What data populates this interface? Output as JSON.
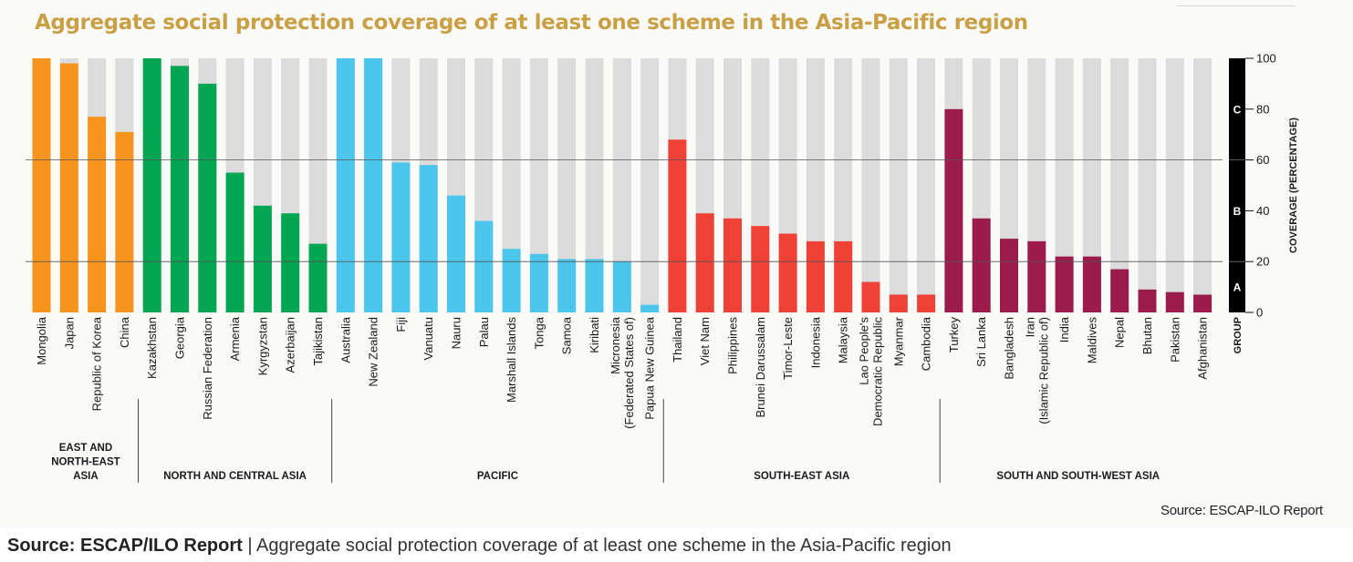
{
  "page": {
    "title": "Aggregate social protection coverage of at least one scheme in the Asia-Pacific region",
    "source_note": "Source: ESCAP-ILO Report",
    "caption_source": "Source: ESCAP/ILO Report",
    "caption_separator": " | ",
    "caption_text": "Aggregate social protection coverage of at least one scheme in the Asia-Pacific region"
  },
  "colors": {
    "title": "#c9a045",
    "background_bar": "#dcdcdc",
    "group_axis": "#000000",
    "gridline": "#555555"
  },
  "chart_data": {
    "type": "bar",
    "ylabel": "COVERAGE (PERCENTAGE)",
    "ylim": [
      0,
      100
    ],
    "yticks": [
      0,
      20,
      40,
      60,
      80,
      100
    ],
    "gridlines": [
      20,
      60
    ],
    "group_axis_title": "GROUP",
    "group_bands": [
      {
        "label": "A",
        "from": 0,
        "to": 20
      },
      {
        "label": "B",
        "from": 20,
        "to": 60
      },
      {
        "label": "C",
        "from": 60,
        "to": 100
      }
    ],
    "regions": [
      {
        "name": "EAST AND\nNORTH-EAST\nASIA",
        "color": "#f7941d",
        "categories": [
          "Mongolia",
          "Japan",
          "Republic of Korea",
          "China"
        ],
        "values": [
          100,
          98,
          77,
          71
        ]
      },
      {
        "name": "NORTH AND CENTRAL ASIA",
        "color": "#00a651",
        "categories": [
          "Kazakhstan",
          "Georgia",
          "Russian Federation",
          "Armenia",
          "Kyrgyzstan",
          "Azerbaijan",
          "Tajikistan"
        ],
        "values": [
          100,
          97,
          90,
          55,
          42,
          39,
          27
        ]
      },
      {
        "name": "PACIFIC",
        "color": "#4cc6ec",
        "categories": [
          "Australia",
          "New Zealand",
          "Fiji",
          "Vanuatu",
          "Nauru",
          "Palau",
          "Marshall Islands",
          "Tonga",
          "Samoa",
          "Kiribati",
          "Micronesia\n(Federated States of)",
          "Papua New Guinea"
        ],
        "values": [
          100,
          100,
          59,
          58,
          46,
          36,
          25,
          23,
          21,
          21,
          20,
          3
        ]
      },
      {
        "name": "SOUTH-EAST ASIA",
        "color": "#ef4135",
        "categories": [
          "Thailand",
          "Viet Nam",
          "Philippines",
          "Brunei Darussalam",
          "Timor-Leste",
          "Indonesia",
          "Malaysia",
          "Lao People's\nDemocratic Republic",
          "Myanmar",
          "Cambodia"
        ],
        "values": [
          68,
          39,
          37,
          34,
          31,
          28,
          28,
          12,
          7,
          7
        ]
      },
      {
        "name": "SOUTH AND SOUTH-WEST ASIA",
        "color": "#9b1b4a",
        "categories": [
          "Turkey",
          "Sri Lanka",
          "Bangladesh",
          "Iran\n(Islamic Republic of)",
          "India",
          "Maldives",
          "Nepal",
          "Bhutan",
          "Pakistan",
          "Afghanistan"
        ],
        "values": [
          80,
          37,
          29,
          28,
          22,
          22,
          17,
          9,
          8,
          7
        ]
      }
    ]
  }
}
